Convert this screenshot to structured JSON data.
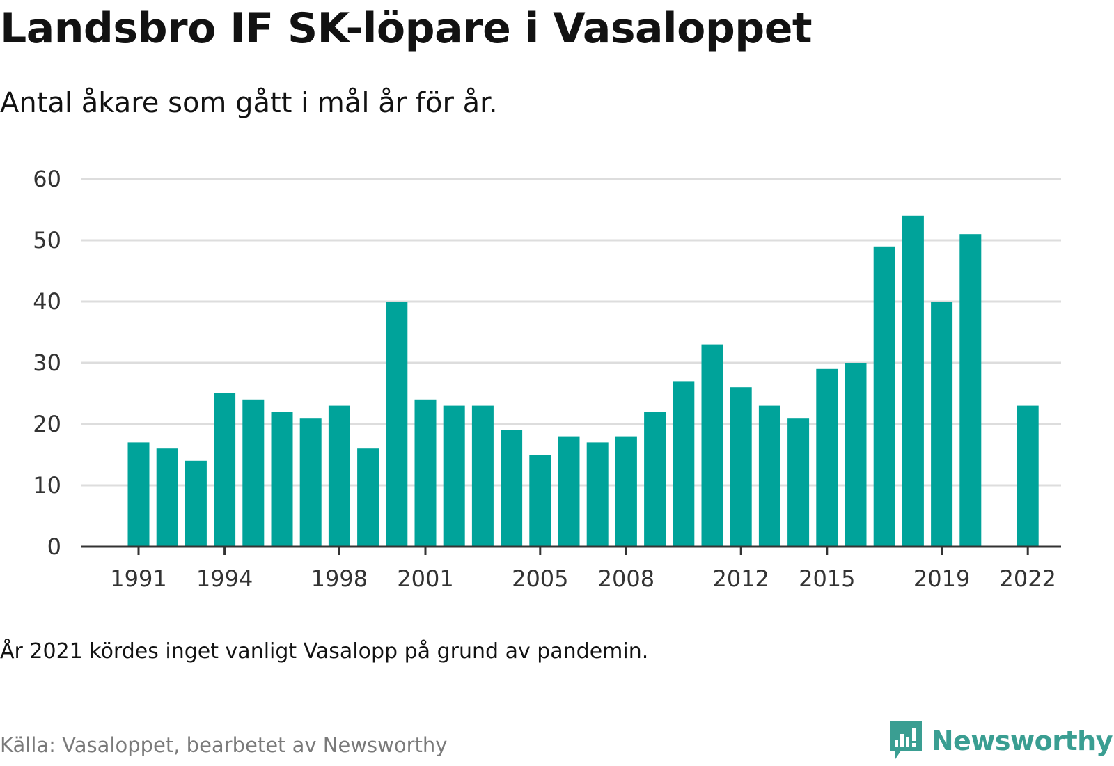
{
  "title": "Landsbro IF SK-löpare i Vasaloppet",
  "subtitle": "Antal åkare som gått i mål år för år.",
  "note": "År 2021 kördes inget vanligt Vasalopp på grund av pandemin.",
  "source": "Källa: Vasaloppet, bearbetet av Newsworthy",
  "brand": {
    "name": "Newsworthy",
    "icon": "newsworthy-logo-icon",
    "color": "#3a9e92"
  },
  "chart_data": {
    "type": "bar",
    "bar_color": "#00a39a",
    "grid_color": "#dddddd",
    "axis_color": "#333333",
    "categories": [
      "1991",
      "1992",
      "1993",
      "1994",
      "1995",
      "1996",
      "1997",
      "1998",
      "1999",
      "2000",
      "2001",
      "2002",
      "2003",
      "2004",
      "2005",
      "2006",
      "2007",
      "2008",
      "2009",
      "2010",
      "2011",
      "2012",
      "2013",
      "2014",
      "2015",
      "2016",
      "2017",
      "2018",
      "2019",
      "2020",
      "2021",
      "2022"
    ],
    "values": [
      17,
      16,
      14,
      25,
      24,
      22,
      21,
      23,
      16,
      40,
      24,
      23,
      23,
      19,
      15,
      18,
      17,
      18,
      22,
      27,
      33,
      26,
      23,
      21,
      29,
      30,
      49,
      54,
      40,
      51,
      null,
      23
    ],
    "x_tick_labels": [
      "1991",
      "1994",
      "1998",
      "2001",
      "2005",
      "2008",
      "2012",
      "2015",
      "2019",
      "2022"
    ],
    "y_ticks": [
      0,
      10,
      20,
      30,
      40,
      50,
      60
    ],
    "ylim": [
      0,
      60
    ],
    "xlabel": "",
    "ylabel": "",
    "grid": true,
    "legend": "none"
  }
}
